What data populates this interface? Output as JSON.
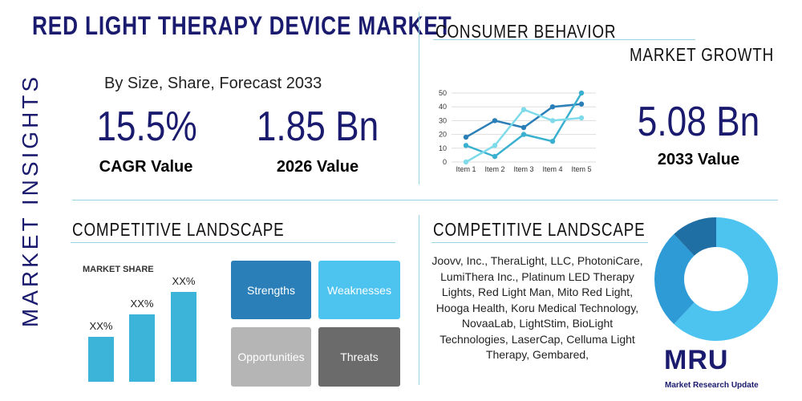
{
  "header": {
    "title": "RED LIGHT THERAPY DEVICE MARKET",
    "side_label": "MARKET INSIGHTS",
    "subtitle": "By Size, Share, Forecast 2033"
  },
  "stats": [
    {
      "value": "15.5%",
      "label": "CAGR Value"
    },
    {
      "value": "1.85 Bn",
      "label": "2026 Value"
    },
    {
      "value": "5.08 Bn",
      "label": "2033 Value"
    }
  ],
  "consumer_behavior": {
    "title": "CONSUMER BEHAVIOR",
    "subtitle": "MARKET GROWTH"
  },
  "competitive_landscape_left": {
    "title": "COMPETITIVE LANDSCAPE"
  },
  "swot": [
    "Strengths",
    "Weaknesses",
    "Opportunities",
    "Threats"
  ],
  "competitive_landscape_right": {
    "title": "COMPETITIVE LANDSCAPE",
    "companies": "Joovv, Inc., TheraLight, LLC, PhotoniCare, LumiThera Inc., Platinum LED Therapy Lights, Red Light Man, Mito Red Light, Hooga Health, Koru Medical Technology, NovaaLab, LightStim, BioLight Technologies, LaserCap, Celluma Light Therapy, Gembared,"
  },
  "logo": {
    "mark": "MRU",
    "name": "Market Research Update"
  },
  "chart_data": [
    {
      "type": "line",
      "categories": [
        "Item 1",
        "Item 2",
        "Item 3",
        "Item 4",
        "Item 5"
      ],
      "ylim": [
        0,
        50
      ],
      "yticks": [
        0,
        10,
        20,
        30,
        40,
        50
      ],
      "grid": true,
      "series": [
        {
          "color": "#2a7fb8",
          "values": [
            18,
            30,
            25,
            40,
            42
          ]
        },
        {
          "color": "#3ab0d0",
          "values": [
            12,
            4,
            20,
            15,
            50
          ]
        },
        {
          "color": "#7fdbea",
          "values": [
            0,
            12,
            38,
            30,
            32
          ]
        }
      ]
    },
    {
      "type": "bar",
      "title": "MARKET SHARE",
      "values": [
        20,
        30,
        40
      ],
      "value_labels": [
        "XX%",
        "XX%",
        "XX%"
      ],
      "color": "#3cb4da"
    },
    {
      "type": "pie",
      "values": [
        62,
        26,
        12
      ],
      "colors": [
        "#4dc3f0",
        "#2e9bd6",
        "#1f6fa5"
      ]
    }
  ]
}
